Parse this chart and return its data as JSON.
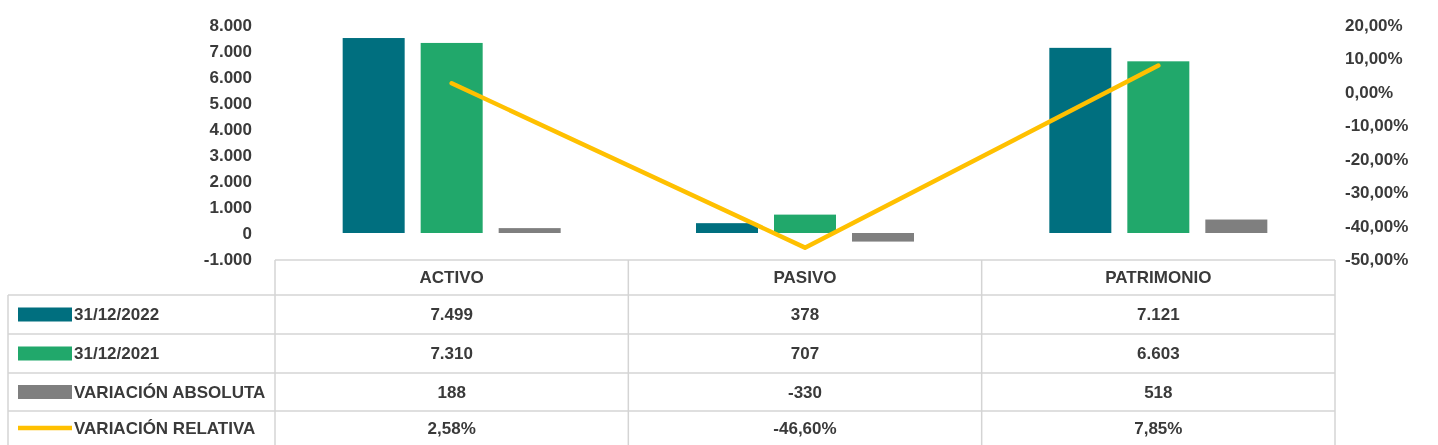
{
  "chart_data": {
    "type": "bar",
    "categories": [
      "ACTIVO",
      "PASIVO",
      "PATRIMONIO"
    ],
    "series": [
      {
        "name": "31/12/2022",
        "color": "#006f7f",
        "values": [
          7499,
          378,
          7121
        ],
        "value_labels": [
          "7.499",
          "378",
          "7.121"
        ]
      },
      {
        "name": "31/12/2021",
        "color": "#21a86b",
        "values": [
          7310,
          707,
          6603
        ],
        "value_labels": [
          "7.310",
          "707",
          "6.603"
        ]
      },
      {
        "name": "VARIACIÓN ABSOLUTA",
        "color": "#7f7f7f",
        "values": [
          188,
          -330,
          518
        ],
        "value_labels": [
          "188",
          "-330",
          "518"
        ]
      },
      {
        "name": "VARIACIÓN RELATIVA",
        "type": "line",
        "axis": "y2",
        "color": "#ffc000",
        "values": [
          2.58,
          -46.6,
          7.85
        ],
        "value_labels": [
          "2,58%",
          "-46,60%",
          "7,85%"
        ]
      }
    ],
    "ylim": [
      -1000,
      8000
    ],
    "yticks": [
      {
        "value": -1000,
        "label": "-1.000"
      },
      0,
      {
        "value": 1000,
        "label": "1.000"
      },
      {
        "value": 2000,
        "label": "2.000"
      },
      {
        "value": 3000,
        "label": "3.000"
      },
      {
        "value": 4000,
        "label": "4.000"
      },
      {
        "value": 5000,
        "label": "5.000"
      },
      {
        "value": 6000,
        "label": "6.000"
      },
      {
        "value": 7000,
        "label": "7.000"
      },
      {
        "value": 8000,
        "label": "8.000"
      }
    ],
    "y2lim": [
      -50,
      20
    ],
    "y2ticks": [
      {
        "value": -50,
        "label": "-50,00%"
      },
      {
        "value": -40,
        "label": "-40,00%"
      },
      {
        "value": -30,
        "label": "-30,00%"
      },
      {
        "value": -20,
        "label": "-20,00%"
      },
      {
        "value": -10,
        "label": "-10,00%"
      },
      {
        "value": 0,
        "label": "0,00%"
      },
      {
        "value": 10,
        "label": "10,00%"
      },
      {
        "value": 20,
        "label": "20,00%"
      }
    ],
    "legend": "bottom"
  }
}
